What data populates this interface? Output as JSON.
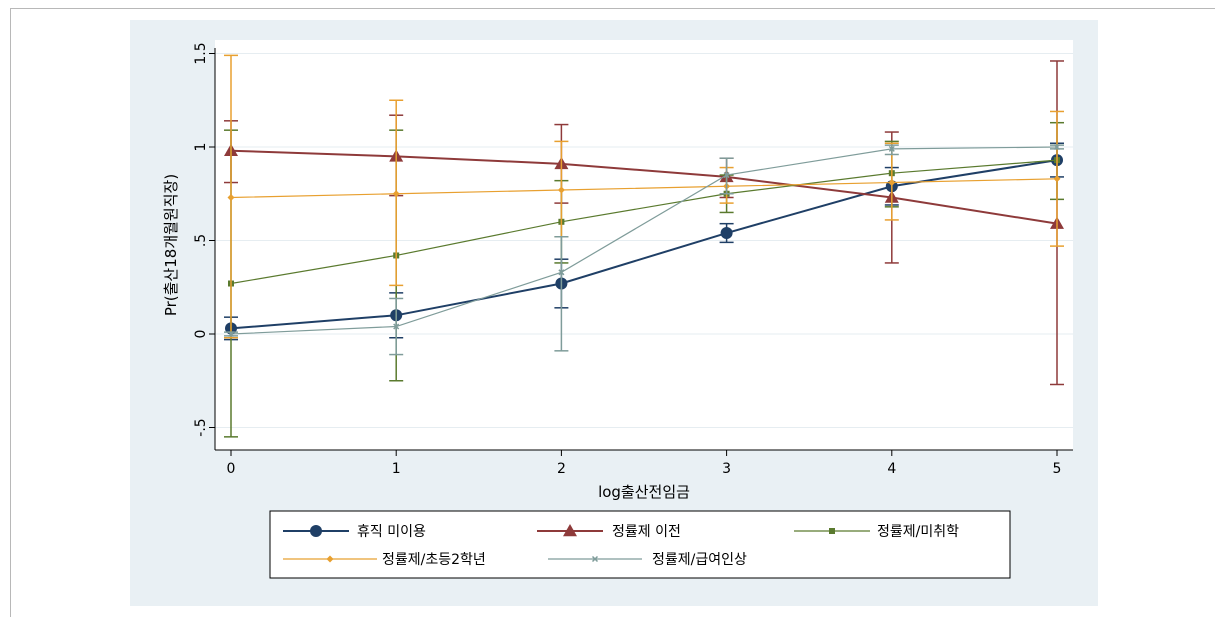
{
  "chart_data": {
    "type": "line",
    "title": "",
    "xlabel": "log출산전임금",
    "ylabel": "Pr(출산18개월원직장)",
    "x": [
      0,
      1,
      2,
      3,
      4,
      5
    ],
    "xticks": [
      "0",
      "1",
      "2",
      "3",
      "4",
      "5"
    ],
    "yticks": [
      -0.5,
      0,
      0.5,
      1,
      1.5
    ],
    "ytick_labels": [
      "-.5",
      "0",
      ".5",
      "1",
      "1.5"
    ],
    "xlim": [
      -0.1,
      5.1
    ],
    "ylim": [
      -0.56,
      1.56
    ],
    "grid": true,
    "error_bars": true,
    "legend_position": "bottom",
    "series": [
      {
        "name": "휴직 미이용",
        "color": "#1f3f66",
        "marker": "circle",
        "values": [
          0.03,
          0.1,
          0.27,
          0.54,
          0.79,
          0.93
        ],
        "lower": [
          -0.03,
          -0.02,
          0.14,
          0.49,
          0.69,
          0.84
        ],
        "upper": [
          0.09,
          0.22,
          0.4,
          0.59,
          0.89,
          1.02
        ]
      },
      {
        "name": "정률제 이전",
        "color": "#8e3a3a",
        "marker": "triangle",
        "values": [
          0.98,
          0.95,
          0.91,
          0.84,
          0.73,
          0.59
        ],
        "lower": [
          0.81,
          0.74,
          0.7,
          0.73,
          0.38,
          -0.27
        ],
        "upper": [
          1.14,
          1.17,
          1.12,
          0.94,
          1.08,
          1.46
        ]
      },
      {
        "name": "정률제/미취학",
        "color": "#5a7a2e",
        "marker": "square",
        "values": [
          0.27,
          0.42,
          0.6,
          0.75,
          0.86,
          0.93
        ],
        "lower": [
          -0.55,
          -0.25,
          0.38,
          0.65,
          0.68,
          0.72
        ],
        "upper": [
          1.09,
          1.09,
          0.82,
          0.85,
          1.03,
          1.13
        ]
      },
      {
        "name": "정률제/초등2학년",
        "color": "#e8a030",
        "marker": "diamond",
        "values": [
          0.73,
          0.75,
          0.77,
          0.79,
          0.81,
          0.83
        ],
        "lower": [
          -0.02,
          0.26,
          0.52,
          0.7,
          0.61,
          0.47
        ],
        "upper": [
          1.49,
          1.25,
          1.03,
          0.89,
          1.02,
          1.19
        ]
      },
      {
        "name": "정률제/급여인상",
        "color": "#7f9c9a",
        "marker": "x",
        "values": [
          0.0,
          0.04,
          0.33,
          0.85,
          0.99,
          1.0
        ],
        "lower": [
          -0.01,
          -0.11,
          -0.09,
          0.75,
          0.96,
          0.99
        ],
        "upper": [
          0.01,
          0.19,
          0.52,
          0.94,
          1.01,
          1.01
        ]
      }
    ]
  }
}
